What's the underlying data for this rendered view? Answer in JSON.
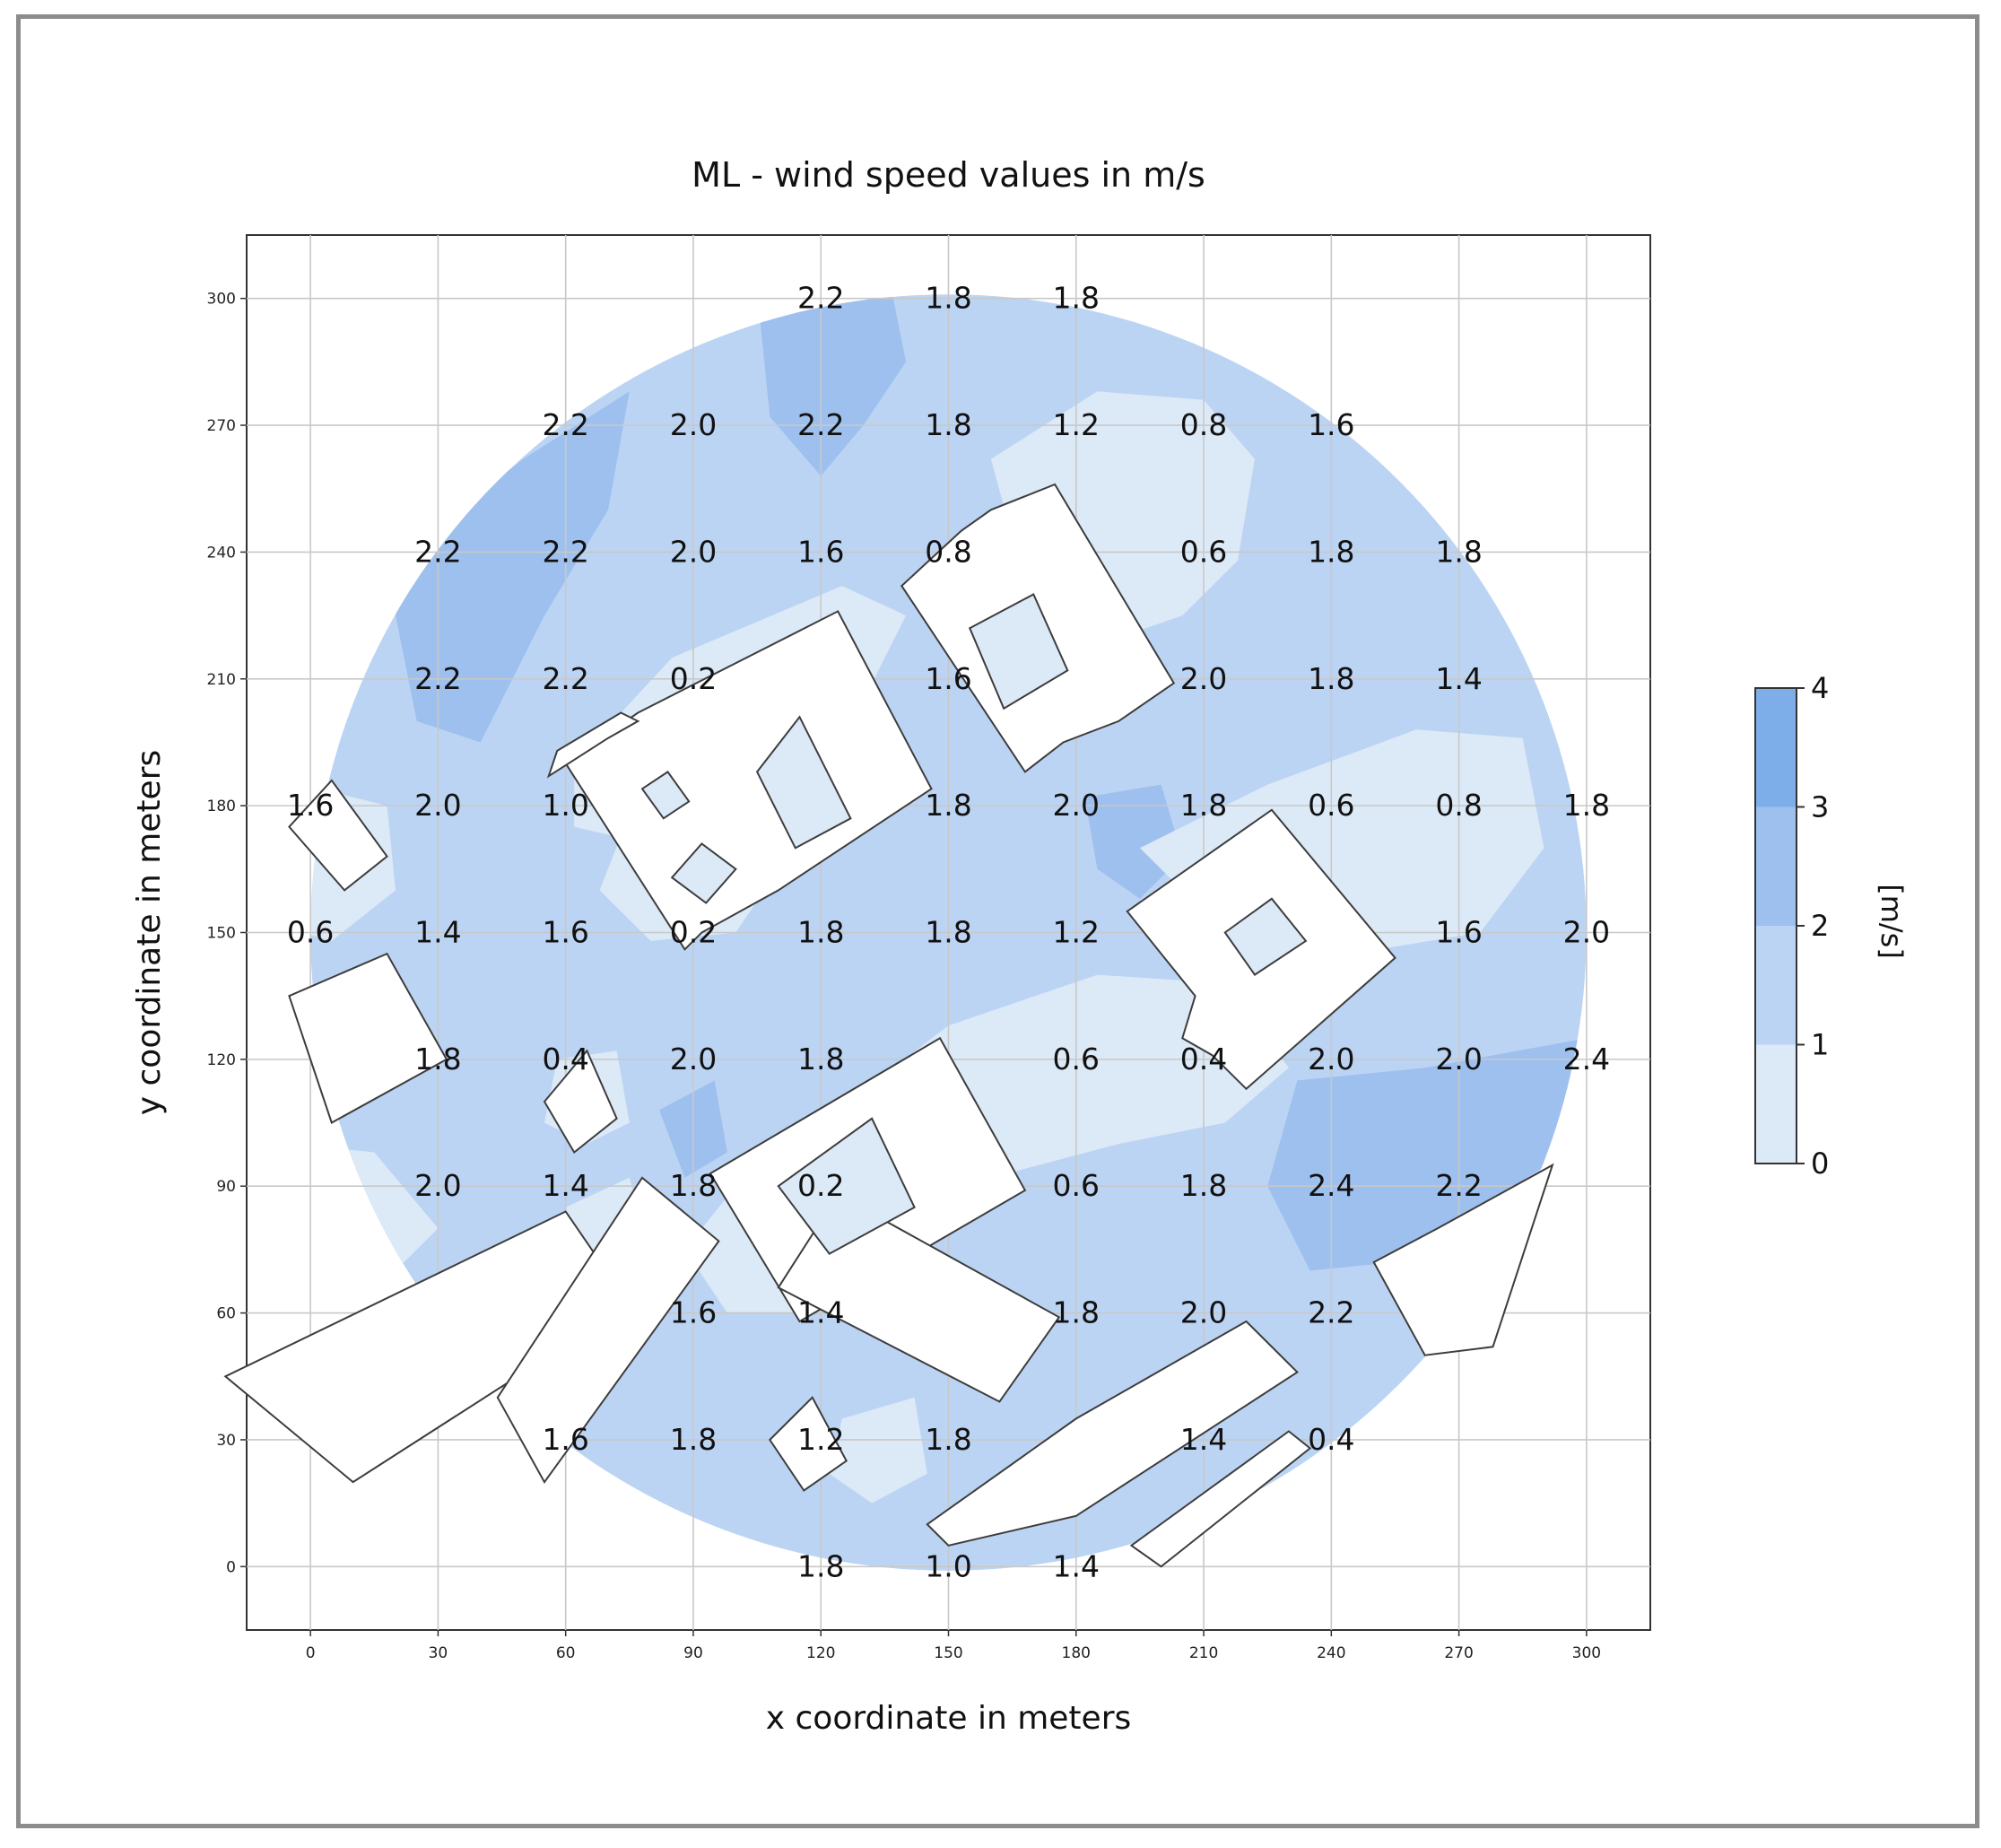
{
  "chart_data": {
    "type": "heatmap",
    "title": "ML - wind speed values in m/s",
    "xlabel": "x coordinate in meters",
    "ylabel": "y coordinate in meters",
    "xlim": [
      -15,
      315
    ],
    "ylim": [
      -15,
      315
    ],
    "xticks": [
      0,
      30,
      60,
      90,
      120,
      150,
      180,
      210,
      240,
      270,
      300
    ],
    "yticks": [
      0,
      30,
      60,
      90,
      120,
      150,
      180,
      210,
      240,
      270,
      300
    ],
    "grid": true,
    "colorbar": {
      "label": "[m/s]",
      "ticks": [
        0,
        1,
        2,
        3,
        4
      ],
      "levels": [
        {
          "from": 0,
          "to": 1,
          "color": "#dce9f7"
        },
        {
          "from": 1,
          "to": 2,
          "color": "#bcd4f3"
        },
        {
          "from": 2,
          "to": 3,
          "color": "#9ec0ee"
        },
        {
          "from": 3,
          "to": 4,
          "color": "#7eaee9"
        }
      ]
    },
    "values": [
      {
        "x": 120,
        "y": 300,
        "v": "2.2"
      },
      {
        "x": 150,
        "y": 300,
        "v": "1.8"
      },
      {
        "x": 180,
        "y": 300,
        "v": "1.8"
      },
      {
        "x": 60,
        "y": 270,
        "v": "2.2"
      },
      {
        "x": 90,
        "y": 270,
        "v": "2.0"
      },
      {
        "x": 120,
        "y": 270,
        "v": "2.2"
      },
      {
        "x": 150,
        "y": 270,
        "v": "1.8"
      },
      {
        "x": 180,
        "y": 270,
        "v": "1.2"
      },
      {
        "x": 210,
        "y": 270,
        "v": "0.8"
      },
      {
        "x": 240,
        "y": 270,
        "v": "1.6"
      },
      {
        "x": 30,
        "y": 240,
        "v": "2.2"
      },
      {
        "x": 60,
        "y": 240,
        "v": "2.2"
      },
      {
        "x": 90,
        "y": 240,
        "v": "2.0"
      },
      {
        "x": 120,
        "y": 240,
        "v": "1.6"
      },
      {
        "x": 150,
        "y": 240,
        "v": "0.8"
      },
      {
        "x": 210,
        "y": 240,
        "v": "0.6"
      },
      {
        "x": 240,
        "y": 240,
        "v": "1.8"
      },
      {
        "x": 270,
        "y": 240,
        "v": "1.8"
      },
      {
        "x": 30,
        "y": 210,
        "v": "2.2"
      },
      {
        "x": 60,
        "y": 210,
        "v": "2.2"
      },
      {
        "x": 90,
        "y": 210,
        "v": "0.2"
      },
      {
        "x": 150,
        "y": 210,
        "v": "1.6"
      },
      {
        "x": 210,
        "y": 210,
        "v": "2.0"
      },
      {
        "x": 240,
        "y": 210,
        "v": "1.8"
      },
      {
        "x": 270,
        "y": 210,
        "v": "1.4"
      },
      {
        "x": 0,
        "y": 180,
        "v": "1.6"
      },
      {
        "x": 30,
        "y": 180,
        "v": "2.0"
      },
      {
        "x": 60,
        "y": 180,
        "v": "1.0"
      },
      {
        "x": 150,
        "y": 180,
        "v": "1.8"
      },
      {
        "x": 180,
        "y": 180,
        "v": "2.0"
      },
      {
        "x": 210,
        "y": 180,
        "v": "1.8"
      },
      {
        "x": 240,
        "y": 180,
        "v": "0.6"
      },
      {
        "x": 270,
        "y": 180,
        "v": "0.8"
      },
      {
        "x": 300,
        "y": 180,
        "v": "1.8"
      },
      {
        "x": 0,
        "y": 150,
        "v": "0.6"
      },
      {
        "x": 30,
        "y": 150,
        "v": "1.4"
      },
      {
        "x": 60,
        "y": 150,
        "v": "1.6"
      },
      {
        "x": 90,
        "y": 150,
        "v": "0.2"
      },
      {
        "x": 120,
        "y": 150,
        "v": "1.8"
      },
      {
        "x": 150,
        "y": 150,
        "v": "1.8"
      },
      {
        "x": 180,
        "y": 150,
        "v": "1.2"
      },
      {
        "x": 270,
        "y": 150,
        "v": "1.6"
      },
      {
        "x": 300,
        "y": 150,
        "v": "2.0"
      },
      {
        "x": 30,
        "y": 120,
        "v": "1.8"
      },
      {
        "x": 60,
        "y": 120,
        "v": "0.4"
      },
      {
        "x": 90,
        "y": 120,
        "v": "2.0"
      },
      {
        "x": 120,
        "y": 120,
        "v": "1.8"
      },
      {
        "x": 180,
        "y": 120,
        "v": "0.6"
      },
      {
        "x": 210,
        "y": 120,
        "v": "0.4"
      },
      {
        "x": 240,
        "y": 120,
        "v": "2.0"
      },
      {
        "x": 270,
        "y": 120,
        "v": "2.0"
      },
      {
        "x": 300,
        "y": 120,
        "v": "2.4"
      },
      {
        "x": 30,
        "y": 90,
        "v": "2.0"
      },
      {
        "x": 60,
        "y": 90,
        "v": "1.4"
      },
      {
        "x": 90,
        "y": 90,
        "v": "1.8"
      },
      {
        "x": 120,
        "y": 90,
        "v": "0.2"
      },
      {
        "x": 180,
        "y": 90,
        "v": "0.6"
      },
      {
        "x": 210,
        "y": 90,
        "v": "1.8"
      },
      {
        "x": 240,
        "y": 90,
        "v": "2.4"
      },
      {
        "x": 270,
        "y": 90,
        "v": "2.2"
      },
      {
        "x": 90,
        "y": 60,
        "v": "1.6"
      },
      {
        "x": 120,
        "y": 60,
        "v": "1.4"
      },
      {
        "x": 180,
        "y": 60,
        "v": "1.8"
      },
      {
        "x": 210,
        "y": 60,
        "v": "2.0"
      },
      {
        "x": 240,
        "y": 60,
        "v": "2.2"
      },
      {
        "x": 60,
        "y": 30,
        "v": "1.6"
      },
      {
        "x": 90,
        "y": 30,
        "v": "1.8"
      },
      {
        "x": 120,
        "y": 30,
        "v": "1.2"
      },
      {
        "x": 150,
        "y": 30,
        "v": "1.8"
      },
      {
        "x": 210,
        "y": 30,
        "v": "1.4"
      },
      {
        "x": 240,
        "y": 30,
        "v": "0.4"
      },
      {
        "x": 120,
        "y": 0,
        "v": "1.8"
      },
      {
        "x": 150,
        "y": 0,
        "v": "1.0"
      },
      {
        "x": 180,
        "y": 0,
        "v": "1.4"
      }
    ],
    "domain": {
      "cx": 150,
      "cy": 150,
      "r": 150
    },
    "calm_zones": [
      [
        [
          160,
          262
        ],
        [
          185,
          278
        ],
        [
          210,
          276
        ],
        [
          222,
          262
        ],
        [
          218,
          238
        ],
        [
          205,
          225
        ],
        [
          185,
          218
        ],
        [
          170,
          225
        ]
      ],
      [
        [
          62,
          190
        ],
        [
          85,
          215
        ],
        [
          125,
          232
        ],
        [
          140,
          225
        ],
        [
          130,
          205
        ],
        [
          100,
          185
        ],
        [
          75,
          172
        ],
        [
          62,
          175
        ]
      ],
      [
        [
          68,
          160
        ],
        [
          80,
          148
        ],
        [
          100,
          150
        ],
        [
          110,
          165
        ],
        [
          95,
          180
        ],
        [
          75,
          178
        ]
      ],
      [
        [
          195,
          170
        ],
        [
          225,
          185
        ],
        [
          260,
          198
        ],
        [
          285,
          196
        ],
        [
          290,
          170
        ],
        [
          275,
          150
        ],
        [
          245,
          145
        ],
        [
          215,
          150
        ]
      ],
      [
        [
          120,
          105
        ],
        [
          150,
          128
        ],
        [
          185,
          140
        ],
        [
          215,
          138
        ],
        [
          230,
          118
        ],
        [
          215,
          105
        ],
        [
          190,
          100
        ],
        [
          160,
          92
        ],
        [
          135,
          90
        ]
      ],
      [
        [
          88,
          75
        ],
        [
          100,
          90
        ],
        [
          130,
          100
        ],
        [
          150,
          98
        ],
        [
          145,
          78
        ],
        [
          120,
          60
        ],
        [
          98,
          60
        ]
      ],
      [
        [
          -2,
          185
        ],
        [
          18,
          180
        ],
        [
          20,
          160
        ],
        [
          5,
          148
        ],
        [
          -2,
          150
        ]
      ],
      [
        [
          58,
          120
        ],
        [
          72,
          122
        ],
        [
          75,
          105
        ],
        [
          65,
          100
        ],
        [
          55,
          105
        ]
      ],
      [
        [
          60,
          85
        ],
        [
          75,
          92
        ],
        [
          80,
          75
        ],
        [
          72,
          62
        ],
        [
          60,
          65
        ]
      ],
      [
        [
          125,
          35
        ],
        [
          142,
          40
        ],
        [
          145,
          22
        ],
        [
          132,
          15
        ],
        [
          122,
          22
        ]
      ],
      [
        [
          215,
          170
        ],
        [
          235,
          182
        ],
        [
          250,
          172
        ],
        [
          240,
          155
        ],
        [
          222,
          155
        ]
      ],
      [
        [
          -5,
          100
        ],
        [
          15,
          98
        ],
        [
          30,
          80
        ],
        [
          10,
          60
        ],
        [
          -5,
          80
        ]
      ]
    ],
    "strong_zones": [
      [
        [
          25,
          242
        ],
        [
          50,
          262
        ],
        [
          75,
          278
        ],
        [
          70,
          250
        ],
        [
          55,
          225
        ],
        [
          40,
          195
        ],
        [
          25,
          200
        ],
        [
          20,
          225
        ]
      ],
      [
        [
          105,
          302
        ],
        [
          135,
          310
        ],
        [
          140,
          285
        ],
        [
          130,
          270
        ],
        [
          120,
          258
        ],
        [
          108,
          272
        ]
      ],
      [
        [
          232,
          115
        ],
        [
          262,
          118
        ],
        [
          300,
          125
        ],
        [
          298,
          100
        ],
        [
          280,
          88
        ],
        [
          255,
          72
        ],
        [
          235,
          70
        ],
        [
          225,
          90
        ]
      ],
      [
        [
          182,
          182
        ],
        [
          200,
          185
        ],
        [
          205,
          168
        ],
        [
          195,
          158
        ],
        [
          185,
          165
        ]
      ],
      [
        [
          82,
          108
        ],
        [
          95,
          115
        ],
        [
          98,
          98
        ],
        [
          88,
          92
        ]
      ]
    ],
    "buildings": [
      [
        [
          57,
          188
        ],
        [
          77,
          202
        ],
        [
          124,
          226
        ],
        [
          146,
          184
        ],
        [
          110,
          160
        ],
        [
          92,
          150
        ],
        [
          88,
          146
        ],
        [
          60,
          190
        ]
      ],
      [
        [
          56,
          187
        ],
        [
          70,
          196
        ],
        [
          77,
          200
        ],
        [
          73,
          202
        ],
        [
          58,
          193
        ]
      ],
      [
        [
          139,
          232
        ],
        [
          153,
          245
        ],
        [
          160,
          250
        ],
        [
          175,
          256
        ],
        [
          203,
          209
        ],
        [
          190,
          200
        ],
        [
          177,
          195
        ],
        [
          168,
          188
        ]
      ],
      [
        [
          192,
          155
        ],
        [
          226,
          179
        ],
        [
          255,
          144
        ],
        [
          220,
          113
        ],
        [
          212,
          121
        ],
        [
          205,
          125
        ],
        [
          208,
          135
        ],
        [
          200,
          145
        ]
      ],
      [
        [
          94,
          93
        ],
        [
          148,
          125
        ],
        [
          168,
          89
        ],
        [
          115,
          58
        ]
      ],
      [
        [
          110,
          66
        ],
        [
          124,
          88
        ],
        [
          176,
          59
        ],
        [
          162,
          39
        ]
      ],
      [
        [
          -20,
          45
        ],
        [
          60,
          84
        ],
        [
          75,
          62
        ],
        [
          10,
          20
        ]
      ],
      [
        [
          44,
          40
        ],
        [
          78,
          92
        ],
        [
          96,
          77
        ],
        [
          55,
          20
        ]
      ],
      [
        [
          145,
          10
        ],
        [
          180,
          35
        ],
        [
          220,
          58
        ],
        [
          232,
          46
        ],
        [
          180,
          12
        ],
        [
          150,
          5
        ]
      ],
      [
        [
          -5,
          175
        ],
        [
          5,
          186
        ],
        [
          18,
          168
        ],
        [
          8,
          160
        ]
      ],
      [
        [
          -5,
          135
        ],
        [
          18,
          145
        ],
        [
          32,
          120
        ],
        [
          5,
          105
        ]
      ],
      [
        [
          108,
          30
        ],
        [
          118,
          40
        ],
        [
          126,
          25
        ],
        [
          116,
          18
        ]
      ],
      [
        [
          55,
          110
        ],
        [
          65,
          122
        ],
        [
          72,
          106
        ],
        [
          62,
          98
        ]
      ],
      [
        [
          250,
          72
        ],
        [
          265,
          80
        ],
        [
          292,
          95
        ],
        [
          278,
          52
        ],
        [
          262,
          50
        ]
      ],
      [
        [
          193,
          5
        ],
        [
          230,
          32
        ],
        [
          235,
          28
        ],
        [
          200,
          0
        ]
      ]
    ],
    "courtyards": [
      [
        [
          78,
          184
        ],
        [
          84,
          188
        ],
        [
          89,
          181
        ],
        [
          83,
          177
        ]
      ],
      [
        [
          85,
          163
        ],
        [
          92,
          171
        ],
        [
          100,
          165
        ],
        [
          93,
          157
        ]
      ],
      [
        [
          105,
          188
        ],
        [
          115,
          201
        ],
        [
          127,
          177
        ],
        [
          114,
          170
        ]
      ],
      [
        [
          155,
          222
        ],
        [
          170,
          230
        ],
        [
          178,
          212
        ],
        [
          163,
          203
        ]
      ],
      [
        [
          215,
          150
        ],
        [
          226,
          158
        ],
        [
          234,
          148
        ],
        [
          222,
          140
        ]
      ],
      [
        [
          110,
          90
        ],
        [
          132,
          106
        ],
        [
          142,
          85
        ],
        [
          122,
          74
        ]
      ]
    ]
  }
}
